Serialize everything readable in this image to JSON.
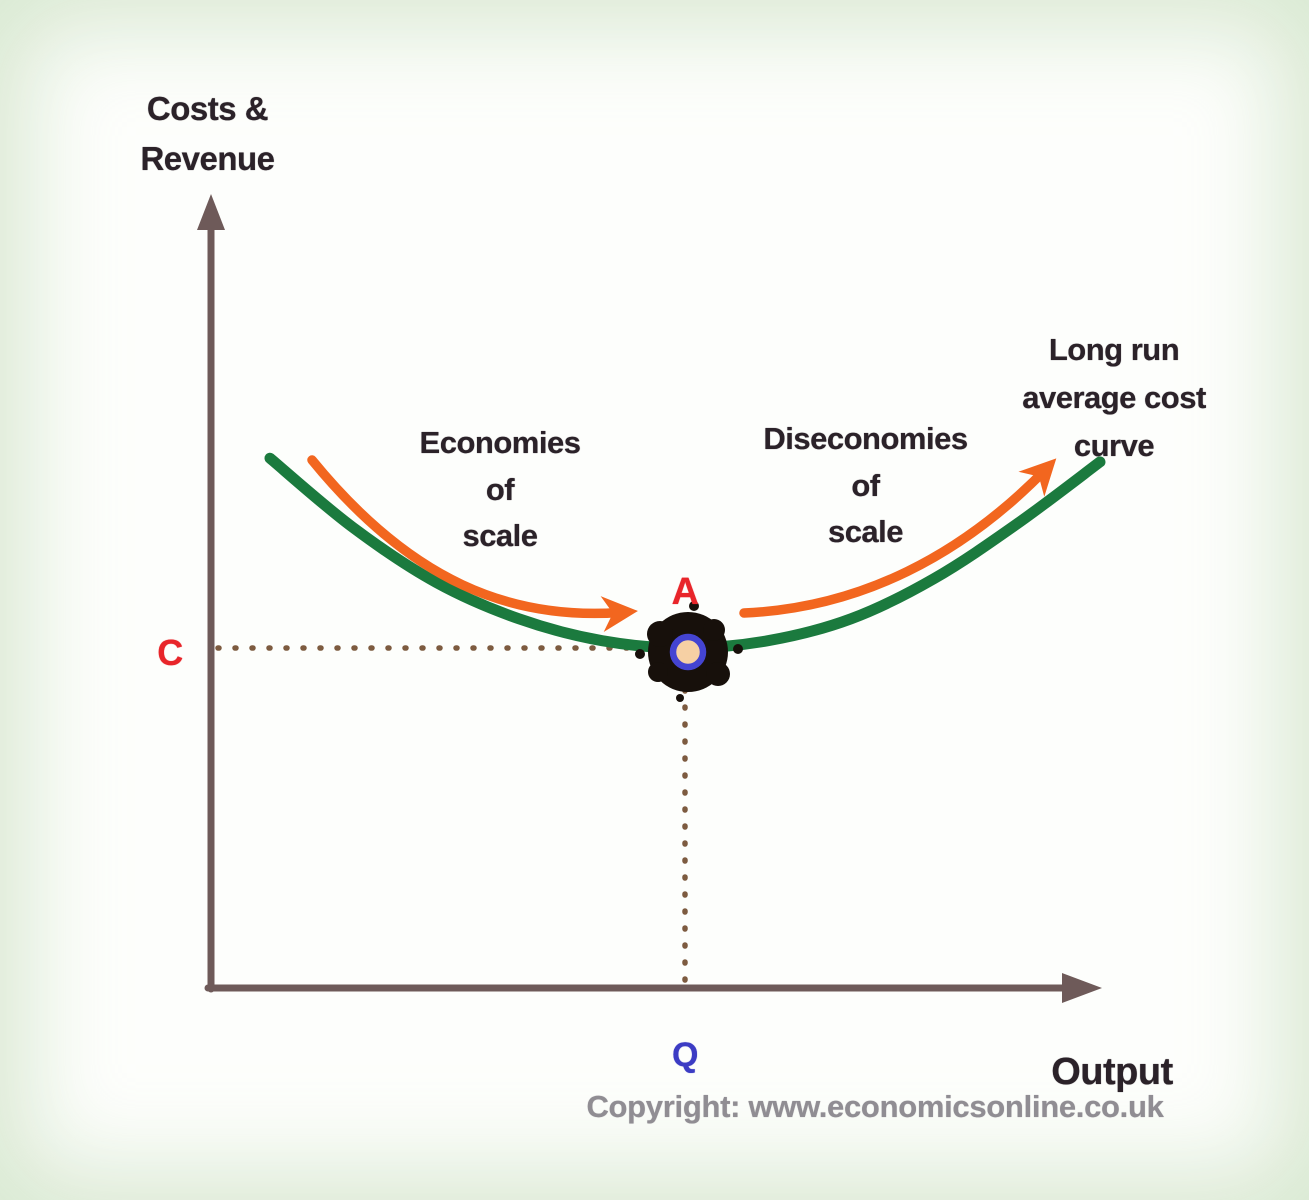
{
  "axes": {
    "y_label": "Costs &\nRevenue",
    "x_label": "Output"
  },
  "labels": {
    "economies": "Economies\nof\nscale",
    "diseconomies": "Diseconomies\nof\nscale",
    "lrac": "Long run\naverage cost\ncurve",
    "point_a": "A",
    "cost_c": "C",
    "output_q": "Q"
  },
  "footer": {
    "copyright": "Copyright: www.economicsonline.co.uk"
  },
  "colors": {
    "ink": "#2b2229",
    "axis": "#6e5a59",
    "dash": "#7d5b40",
    "green": "#1b7a3e",
    "orange": "#f2661f",
    "red": "#e8252a",
    "blue": "#3c3cc4",
    "gray": "#908d93"
  },
  "chart_data": {
    "type": "line",
    "title": "Long run average cost curve",
    "xlabel": "Output",
    "ylabel": "Costs & Revenue",
    "x_axis_ticks": [
      "Q"
    ],
    "y_axis_ticks": [
      "C"
    ],
    "grid": false,
    "legend": false,
    "series": [
      {
        "name": "Long run average cost (LRAC)",
        "color": "#1b7a3e",
        "units": "cost relative to minimum cost C",
        "x": [
          0,
          1,
          2,
          3,
          4,
          5,
          6,
          7,
          8,
          9,
          10
        ],
        "y": [
          1.52,
          1.33,
          1.18,
          1.08,
          1.02,
          1.0,
          1.02,
          1.08,
          1.19,
          1.34,
          1.51
        ]
      }
    ],
    "annotations": [
      {
        "label": "A",
        "x": 5,
        "y": 1.0,
        "description": "Minimum point of LRAC at output Q and cost C"
      },
      {
        "label": "C",
        "axis": "y",
        "description": "Cost level at minimum of LRAC"
      },
      {
        "label": "Q",
        "axis": "x",
        "description": "Output level at minimum of LRAC"
      },
      {
        "label": "Economies of scale",
        "region": "output below Q",
        "direction": "falling average cost"
      },
      {
        "label": "Diseconomies of scale",
        "region": "output above Q",
        "direction": "rising average cost"
      }
    ]
  }
}
